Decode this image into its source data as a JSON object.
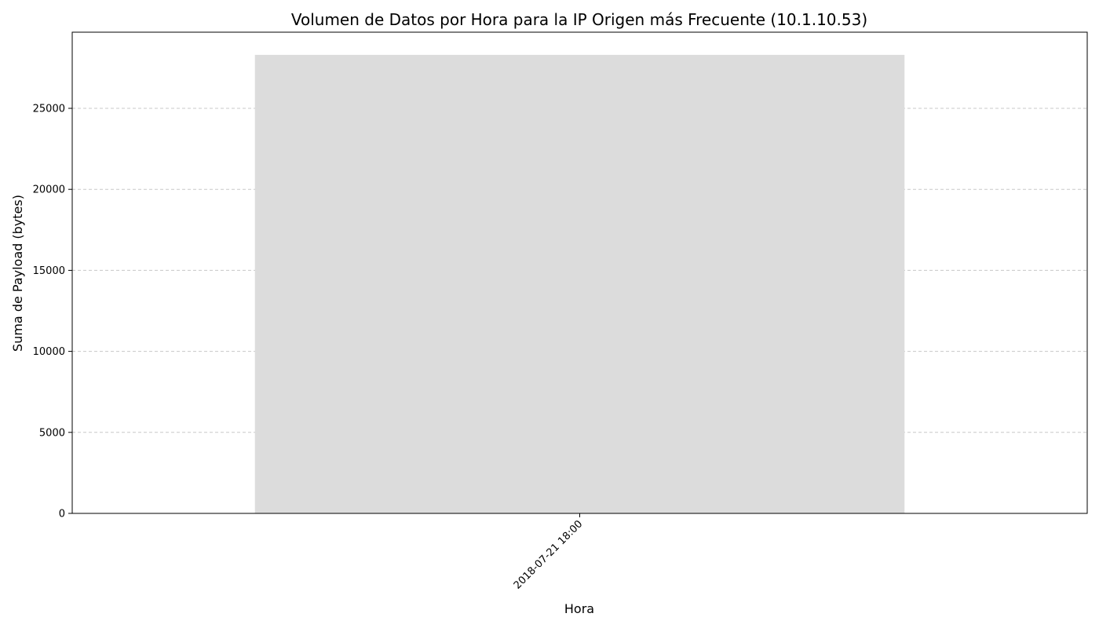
{
  "chart_data": {
    "type": "bar",
    "title": "Volumen de Datos por Hora para la IP Origen más Frecuente (10.1.10.53)",
    "xlabel": "Hora",
    "ylabel": "Suma de Payload (bytes)",
    "categories": [
      "2018-07-21 18:00"
    ],
    "values": [
      28300
    ],
    "ylim": [
      0,
      29700
    ],
    "yticks": [
      0,
      5000,
      10000,
      15000,
      20000,
      25000
    ],
    "ytick_labels": [
      "0",
      "5000",
      "10000",
      "15000",
      "20000",
      "25000"
    ],
    "grid": "y dashed",
    "legend": "none",
    "x_tick_rotation": "45",
    "bar_color": "#dcdcdc",
    "grid_color": "#c8c8c8"
  }
}
